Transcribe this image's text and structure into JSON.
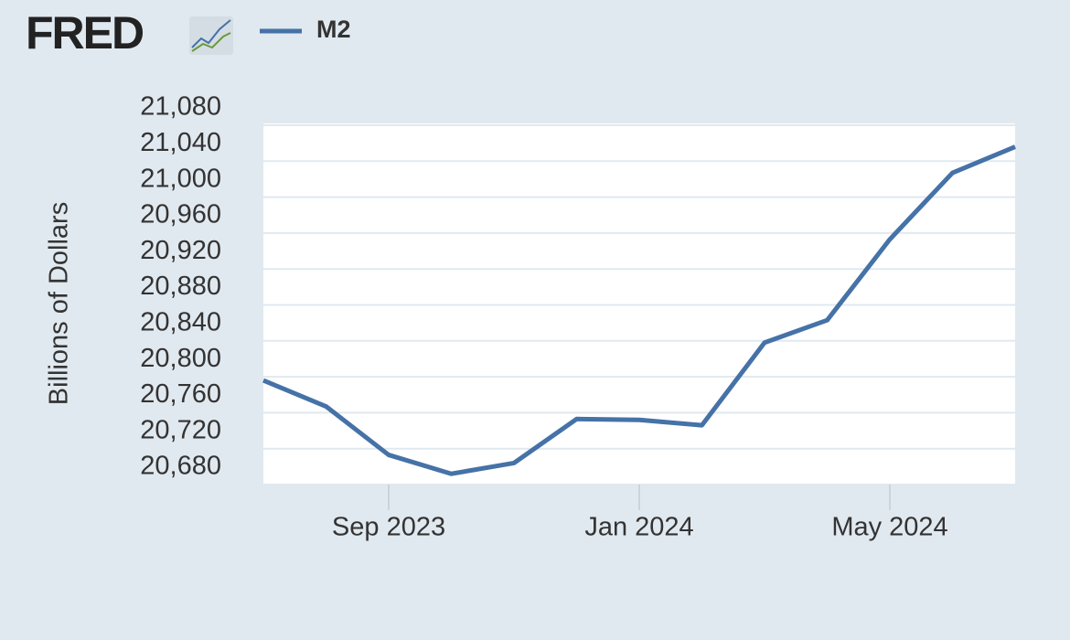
{
  "brand": "FRED",
  "chart_data": {
    "type": "line",
    "y_label": "Billions of Dollars",
    "x": [
      "2023-07",
      "2023-08",
      "2023-09",
      "2023-10",
      "2023-11",
      "2023-12",
      "2024-01",
      "2024-02",
      "2024-03",
      "2024-04",
      "2024-05",
      "2024-06",
      "2024-07"
    ],
    "series": [
      {
        "name": "M2",
        "color": "#4572a7",
        "values": [
          20796,
          20767,
          20713,
          20692,
          20704,
          20753,
          20752,
          20746,
          20838,
          20863,
          20953,
          21027,
          21056
        ]
      }
    ],
    "xticks": [
      {
        "value": "2023-09",
        "label": "Sep 2023"
      },
      {
        "value": "2024-01",
        "label": "Jan 2024"
      },
      {
        "value": "2024-05",
        "label": "May 2024"
      }
    ],
    "ylim": [
      20680,
      21080
    ],
    "yticks": [
      {
        "value": 20680,
        "label": "20,680"
      },
      {
        "value": 20720,
        "label": "20,720"
      },
      {
        "value": 20760,
        "label": "20,760"
      },
      {
        "value": 20800,
        "label": "20,800"
      },
      {
        "value": 20840,
        "label": "20,840"
      },
      {
        "value": 20880,
        "label": "20,880"
      },
      {
        "value": 20920,
        "label": "20,920"
      },
      {
        "value": 20960,
        "label": "20,960"
      },
      {
        "value": 21000,
        "label": "21,000"
      },
      {
        "value": 21040,
        "label": "21,040"
      },
      {
        "value": 21080,
        "label": "21,080"
      }
    ],
    "grid": true,
    "legend": "top-left"
  }
}
